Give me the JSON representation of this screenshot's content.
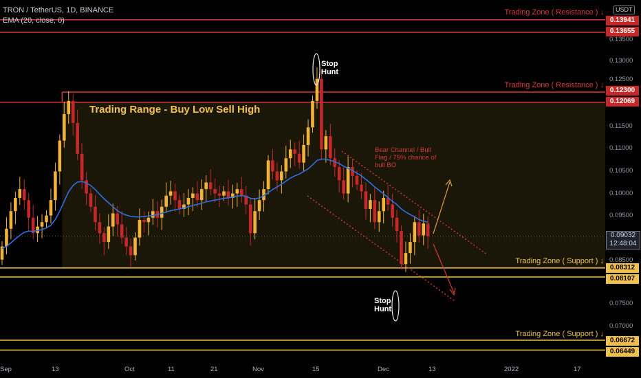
{
  "header": {
    "symbol_line": "TRON / TetherUS, 1D, BINANCE",
    "indicator_line": "EMA (20, close, 0)"
  },
  "price_axis": {
    "unit": "USDT",
    "ticks": [
      "0.13500",
      "0.13000",
      "0.12500",
      "0.11500",
      "0.11000",
      "0.10500",
      "0.10000",
      "0.09500",
      "0.08500",
      "0.07500",
      "0.07000"
    ],
    "last_price": "0.09032",
    "countdown": "12:48:04"
  },
  "time_axis": {
    "labels": [
      "Sep",
      "13",
      "Oct",
      "11",
      "21",
      "Nov",
      "15",
      "Dec",
      "13",
      "2022",
      "17"
    ]
  },
  "levels": {
    "resistance_high": [
      "0.13941",
      "0.13655"
    ],
    "resistance_low": [
      "0.12300",
      "0.12069"
    ],
    "support_high": [
      "0.08312",
      "0.08107"
    ],
    "support_low": [
      "0.06672",
      "0.06449"
    ]
  },
  "annotations": {
    "zone_resistance": "Trading Zone ( Resistance ) ↓",
    "zone_support": "Trading Zone ( Support ) ↓",
    "range_title": "Trading Range - Buy Low Sell High",
    "stop_hunt": "Stop Hunt",
    "bear_channel": "Bear Channel / Bull Flag / 75% chance of bull BO"
  },
  "colors": {
    "up": "#f2b33a",
    "down": "#c62828",
    "ema": "#2f6fe0",
    "resistance": "#d63a3a",
    "support": "#f0c04a",
    "range_fill": "#1b1708",
    "background": "#000000"
  },
  "chart_data": {
    "type": "candlestick",
    "title": "TRON / TetherUS, 1D, BINANCE",
    "ylim": [
      0.0635,
      0.1425
    ],
    "grid": false,
    "series": [
      {
        "name": "TRON / TetherUS",
        "close": [
          0.088,
          0.092,
          0.096,
          0.099,
          0.101,
          0.0985,
          0.0945,
          0.091,
          0.0925,
          0.0935,
          0.095,
          0.0985,
          0.105,
          0.112,
          0.118,
          0.121,
          0.116,
          0.109,
          0.103,
          0.1,
          0.097,
          0.0935,
          0.091,
          0.089,
          0.0925,
          0.0955,
          0.093,
          0.09,
          0.088,
          0.086,
          0.09,
          0.094,
          0.0935,
          0.0945,
          0.096,
          0.0945,
          0.097,
          0.0995,
          0.1005,
          0.0985,
          0.0965,
          0.0975,
          0.099,
          0.1,
          0.0985,
          0.101,
          0.1025,
          0.101,
          0.1,
          0.0995,
          0.1005,
          0.099,
          0.1,
          0.101,
          0.0995,
          0.0975,
          0.091,
          0.096,
          0.0985,
          0.101,
          0.1075,
          0.105,
          0.103,
          0.105,
          0.108,
          0.11,
          0.109,
          0.107,
          0.111,
          0.115,
          0.121,
          0.126,
          0.11,
          0.113,
          0.108,
          0.106,
          0.103,
          0.1,
          0.106,
          0.104,
          0.102,
          0.1005,
          0.0965,
          0.0985,
          0.0935,
          0.096,
          0.099,
          0.0975,
          0.0945,
          0.0915,
          0.084,
          0.0865,
          0.089,
          0.0935,
          0.0905,
          0.0932,
          0.0903
        ],
        "ema20": [
          0.0875,
          0.088,
          0.0888,
          0.0897,
          0.0905,
          0.0912,
          0.0915,
          0.0914,
          0.0916,
          0.0918,
          0.0922,
          0.0928,
          0.0941,
          0.096,
          0.0982,
          0.1004,
          0.1018,
          0.1026,
          0.1027,
          0.1024,
          0.1018,
          0.1009,
          0.0998,
          0.0988,
          0.0979,
          0.097,
          0.0961,
          0.0955,
          0.0951,
          0.0948,
          0.0947,
          0.0947,
          0.0948,
          0.0949,
          0.095,
          0.0952,
          0.0955,
          0.0958,
          0.0961,
          0.0963,
          0.0965,
          0.0967,
          0.097,
          0.0973,
          0.0975,
          0.0978,
          0.0981,
          0.0983,
          0.0985,
          0.0987,
          0.0989,
          0.099,
          0.0992,
          0.0994,
          0.0995,
          0.0994,
          0.0989,
          0.0988,
          0.099,
          0.0995,
          0.1002,
          0.1009,
          0.1015,
          0.1021,
          0.1028,
          0.1035,
          0.104,
          0.1044,
          0.105,
          0.1056,
          0.1065,
          0.1075,
          0.1078,
          0.1078,
          0.1075,
          0.1072,
          0.1068,
          0.1062,
          0.1057,
          0.1052,
          0.1046,
          0.104,
          0.1032,
          0.1024,
          0.1015,
          0.1007,
          0.0999,
          0.0991,
          0.0982,
          0.0975,
          0.0965,
          0.0958,
          0.0952,
          0.0947,
          0.0941,
          0.0937,
          0.0935
        ]
      }
    ],
    "horizontal_levels": [
      0.13941,
      0.13655,
      0.123,
      0.12069,
      0.08312,
      0.08107,
      0.06672,
      0.06449
    ],
    "last_price": 0.09032
  }
}
